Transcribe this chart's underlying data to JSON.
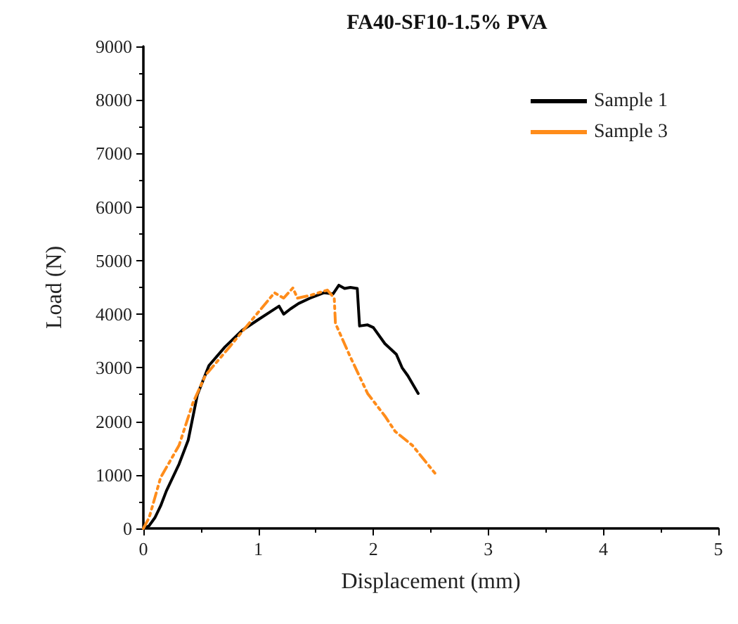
{
  "chart_data": {
    "type": "line",
    "title": "FA40-SF10-1.5% PVA",
    "xlabel": "Displacement (mm)",
    "ylabel": "Load (N)",
    "xlim": [
      0,
      5
    ],
    "xticks": [
      0,
      1,
      2,
      3,
      4,
      5
    ],
    "ylim": [
      0,
      9000
    ],
    "yticks": [
      0,
      1000,
      2000,
      3000,
      4000,
      5000,
      6000,
      7000,
      8000,
      9000
    ],
    "grid": false,
    "legend": "top right",
    "marker": "none",
    "series": [
      {
        "name": "Sample 1",
        "color": "#000000",
        "line_style": "solid",
        "x": [
          0,
          0.05,
          0.1,
          0.15,
          0.2,
          0.31,
          0.39,
          0.47,
          0.57,
          0.71,
          0.86,
          1.0,
          1.1,
          1.18,
          1.22,
          1.28,
          1.35,
          1.45,
          1.57,
          1.65,
          1.7,
          1.75,
          1.8,
          1.86,
          1.88,
          1.95,
          2.0,
          2.1,
          2.2,
          2.25,
          2.3,
          2.39
        ],
        "values": [
          0,
          50,
          200,
          420,
          700,
          1200,
          1650,
          2500,
          3040,
          3390,
          3700,
          3900,
          4040,
          4150,
          4000,
          4100,
          4200,
          4300,
          4400,
          4380,
          4540,
          4480,
          4500,
          4480,
          3780,
          3800,
          3750,
          3450,
          3250,
          3000,
          2850,
          2520
        ]
      },
      {
        "name": "Sample 3",
        "color": "#ff8c1a",
        "line_style": "dashed",
        "x": [
          0,
          0.05,
          0.15,
          0.31,
          0.43,
          0.54,
          0.75,
          0.95,
          1.14,
          1.22,
          1.3,
          1.34,
          1.45,
          1.6,
          1.66,
          1.67,
          1.8,
          1.95,
          2.1,
          2.19,
          2.34,
          2.54
        ],
        "values": [
          0,
          200,
          950,
          1550,
          2340,
          2860,
          3390,
          3910,
          4400,
          4300,
          4490,
          4300,
          4350,
          4450,
          4300,
          3830,
          3200,
          2520,
          2100,
          1810,
          1550,
          1020
        ]
      }
    ]
  }
}
